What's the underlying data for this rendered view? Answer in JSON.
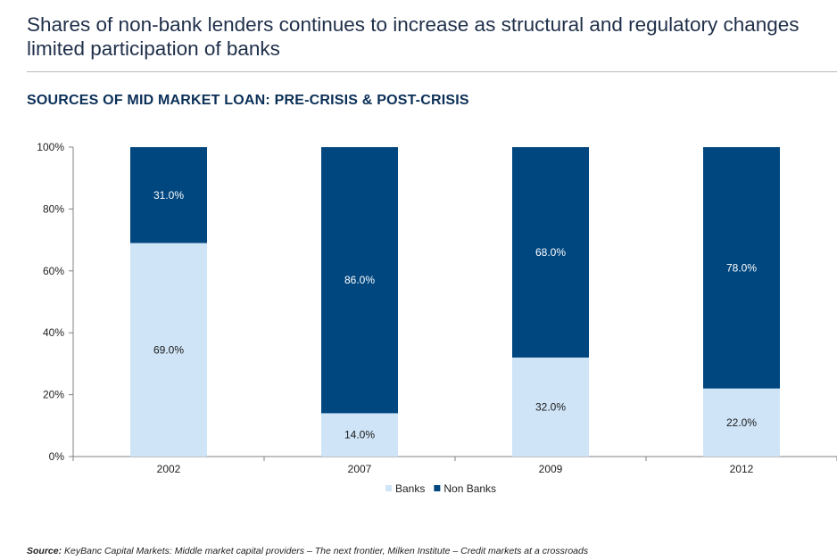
{
  "headline": "Shares of non-bank lenders continues to increase as structural and regulatory changes limited participation of banks",
  "chart_data": {
    "type": "bar",
    "stacked": true,
    "title": "SOURCES OF MID MARKET LOAN: PRE-CRISIS & POST-CRISIS",
    "categories": [
      "2002",
      "2007",
      "2009",
      "2012"
    ],
    "series": [
      {
        "name": "Banks",
        "color": "#cfe4f7",
        "label_color": "#1a1a1a",
        "values": [
          69.0,
          14.0,
          32.0,
          22.0
        ]
      },
      {
        "name": "Non Banks",
        "color": "#00467f",
        "label_color": "#ffffff",
        "values": [
          31.0,
          86.0,
          68.0,
          78.0
        ]
      }
    ],
    "y_ticks": [
      "0%",
      "20%",
      "40%",
      "60%",
      "80%",
      "100%"
    ],
    "ylim": [
      0,
      100
    ],
    "xlabel": "",
    "ylabel": "",
    "legend_position": "bottom-center"
  },
  "footnote": {
    "label": "Source:",
    "text": " KeyBanc Capital Markets: Middle market capital providers – The next frontier, Milken Institute – Credit markets at a crossroads"
  }
}
